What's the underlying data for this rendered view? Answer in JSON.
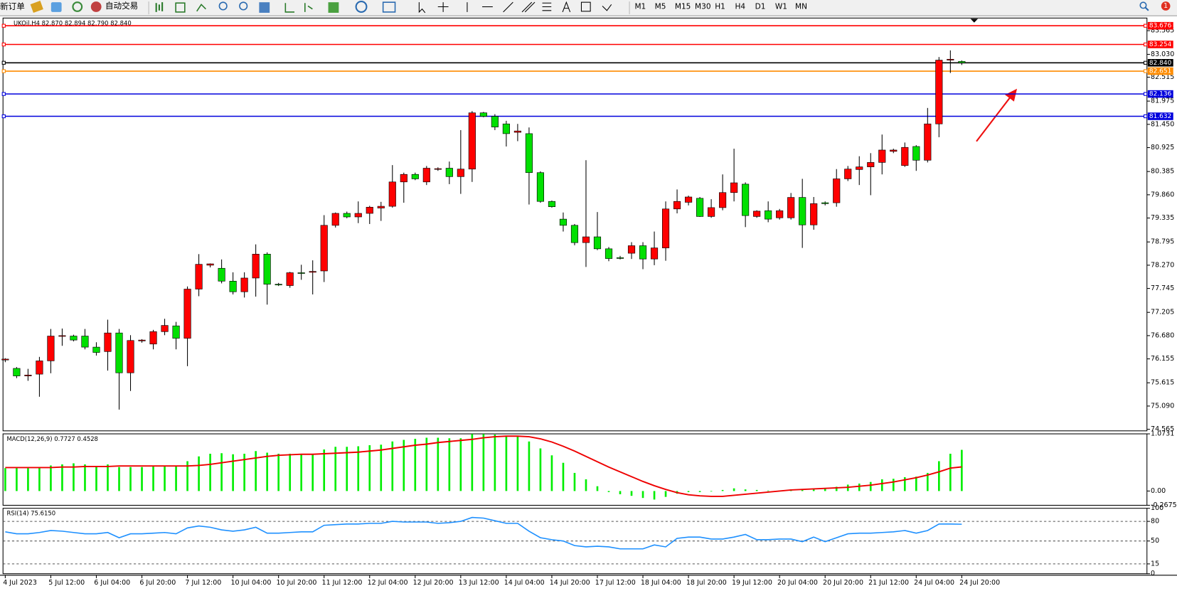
{
  "toolbar": {
    "new_order": "新订单",
    "auto_trading": "自动交易",
    "timeframes": [
      "M1",
      "M5",
      "M15",
      "M30",
      "H1",
      "H4",
      "D1",
      "W1",
      "MN"
    ],
    "notification_count": "1"
  },
  "chart_data": [
    {
      "type": "candlestick",
      "title": "UKOil,H4 82.870 82.894 82.790 82.840",
      "categories": [
        "4 Jul 2023",
        null,
        null,
        null,
        "5 Jul 12:00",
        null,
        null,
        null,
        "6 Jul 04:00",
        null,
        null,
        null,
        "6 Jul 20:00",
        null,
        null,
        null,
        "7 Jul 12:00",
        null,
        null,
        null,
        "10 Jul 04:00",
        null,
        null,
        null,
        "10 Jul 20:00",
        null,
        null,
        null,
        "11 Jul 12:00",
        null,
        null,
        null,
        "12 Jul 04:00",
        null,
        null,
        null,
        "12 Jul 20:00",
        null,
        null,
        null,
        "13 Jul 12:00",
        null,
        null,
        null,
        "14 Jul 04:00",
        null,
        null,
        null,
        "14 Jul 20:00",
        null,
        null,
        null,
        "17 Jul 12:00",
        null,
        null,
        null,
        "18 Jul 04:00",
        null,
        null,
        null,
        "18 Jul 20:00",
        null,
        null,
        null,
        "19 Jul 12:00",
        null,
        null,
        null,
        "20 Jul 04:00",
        null,
        null,
        null,
        "20 Jul 20:00",
        null,
        null,
        null,
        "21 Jul 12:00",
        null,
        null,
        null,
        "24 Jul 04:00",
        null,
        null,
        null,
        "24 Jul 20:00"
      ],
      "open": [
        76.13,
        75.94,
        75.77,
        75.81,
        76.11,
        76.67,
        76.67,
        76.67,
        76.42,
        76.32,
        76.74,
        75.84,
        76.56,
        76.49,
        76.77,
        76.9,
        76.62,
        77.73,
        78.27,
        78.2,
        77.91,
        77.67,
        77.98,
        78.52,
        77.84,
        77.81,
        78.1,
        78.11,
        78.14,
        79.17,
        79.44,
        79.36,
        79.44,
        79.56,
        79.6,
        80.15,
        80.32,
        80.15,
        80.44,
        80.46,
        80.27,
        80.44,
        81.71,
        81.63,
        81.46,
        81.27,
        81.24,
        80.36,
        79.71,
        79.31,
        79.17,
        78.78,
        78.91,
        78.64,
        78.44,
        78.54,
        78.71,
        78.41,
        78.66,
        79.54,
        79.69,
        79.78,
        79.37,
        79.57,
        79.91,
        80.1,
        79.37,
        79.5,
        79.34,
        79.34,
        79.8,
        79.18,
        79.68,
        79.68,
        80.22,
        80.43,
        80.49,
        80.59,
        80.84,
        80.52,
        80.95,
        80.64,
        81.46,
        82.9,
        82.87
      ],
      "high": [
        76.17,
        75.97,
        75.93,
        76.2,
        76.83,
        76.84,
        76.7,
        76.83,
        76.53,
        77.04,
        76.83,
        76.69,
        76.6,
        76.81,
        77.06,
        76.99,
        77.79,
        78.52,
        78.31,
        78.4,
        78.11,
        78.11,
        78.74,
        78.56,
        77.87,
        78.12,
        78.28,
        78.38,
        79.4,
        79.46,
        79.48,
        79.71,
        79.61,
        79.7,
        80.53,
        80.36,
        80.36,
        80.51,
        80.48,
        80.61,
        81.32,
        81.75,
        81.73,
        81.68,
        81.53,
        81.46,
        81.38,
        80.39,
        79.73,
        79.46,
        79.2,
        80.64,
        79.47,
        78.68,
        78.48,
        78.79,
        78.79,
        79.03,
        79.71,
        79.98,
        79.84,
        79.81,
        79.76,
        80.32,
        80.9,
        80.14,
        79.51,
        79.71,
        79.54,
        79.9,
        80.22,
        79.81,
        79.71,
        80.44,
        80.51,
        80.73,
        80.8,
        81.22,
        80.9,
        81.04,
        80.98,
        81.82,
        82.97,
        83.12,
        82.894
      ],
      "low": [
        76.08,
        75.72,
        75.66,
        75.3,
        75.83,
        76.45,
        76.55,
        76.37,
        76.23,
        75.89,
        75.01,
        75.43,
        76.52,
        76.37,
        76.69,
        76.37,
        75.99,
        77.57,
        78.22,
        77.86,
        77.61,
        77.54,
        77.56,
        77.38,
        77.8,
        77.76,
        77.94,
        77.61,
        77.89,
        79.12,
        79.33,
        79.22,
        79.2,
        79.27,
        79.57,
        79.68,
        80.19,
        80.08,
        80.4,
        80.1,
        79.88,
        80.15,
        81.61,
        81.32,
        80.95,
        81.07,
        79.64,
        79.68,
        79.57,
        79.03,
        78.72,
        78.23,
        78.61,
        78.36,
        78.4,
        78.41,
        78.18,
        78.27,
        78.37,
        79.44,
        79.62,
        79.36,
        79.34,
        79.51,
        79.71,
        79.13,
        79.34,
        79.24,
        79.3,
        79.3,
        78.66,
        79.07,
        79.62,
        79.59,
        80.17,
        80.08,
        79.85,
        80.32,
        80.8,
        80.49,
        80.4,
        80.59,
        81.16,
        82.61,
        82.79
      ],
      "close": [
        76.15,
        75.77,
        75.79,
        76.11,
        76.67,
        76.68,
        76.58,
        76.42,
        76.3,
        76.74,
        75.84,
        76.57,
        76.58,
        76.77,
        76.91,
        76.62,
        77.73,
        78.29,
        78.3,
        77.91,
        77.67,
        77.98,
        78.52,
        77.84,
        77.83,
        78.1,
        78.09,
        78.13,
        79.17,
        79.44,
        79.36,
        79.44,
        79.58,
        79.6,
        80.15,
        80.32,
        80.22,
        80.46,
        80.45,
        80.27,
        80.44,
        81.71,
        81.63,
        81.39,
        81.24,
        81.3,
        80.36,
        79.71,
        79.59,
        79.17,
        78.78,
        78.91,
        78.64,
        78.42,
        78.43,
        78.71,
        78.41,
        78.66,
        79.54,
        79.71,
        79.81,
        79.37,
        79.57,
        79.91,
        80.13,
        79.39,
        79.49,
        79.31,
        79.5,
        79.8,
        79.18,
        79.66,
        79.66,
        80.22,
        80.44,
        80.49,
        80.59,
        80.87,
        80.87,
        80.93,
        80.64,
        81.46,
        82.9,
        82.92,
        82.84
      ],
      "up_color": "#ff0000",
      "down_color": "#00e000",
      "ylim": [
        74.53,
        83.85
      ],
      "yticks": [
        83.565,
        {
          "value": 83.03,
          "label": "83.030"
        },
        82.515,
        81.975,
        {
          "value": 81.45,
          "label": "81.450"
        },
        80.925,
        80.385,
        {
          "value": 79.86,
          "label": "79.860"
        },
        79.335,
        78.795,
        {
          "value": 78.27,
          "label": "78.270"
        },
        77.745,
        77.205,
        {
          "value": 76.68,
          "label": "76.680"
        },
        76.155,
        75.615,
        {
          "value": 75.09,
          "label": "75.090"
        },
        74.565
      ],
      "levels": {
        "values": [
          83.676,
          83.254,
          82.84,
          82.651,
          82.136,
          81.632
        ],
        "value_labels": [
          "83.676",
          "83.254",
          "82.840",
          "82.651",
          "82.136",
          "81.632"
        ],
        "colors": [
          "#ff0000",
          "#ff0000",
          "#000000",
          "#ff8c00",
          "#0000dd",
          "#0000dd"
        ]
      }
    },
    {
      "type": "macd",
      "title": "MACD(12,26,9) 0.7727 0.4528",
      "series": [
        {
          "type": "bar",
          "color": "#00ee00",
          "values": [
            0.43,
            0.43,
            0.43,
            0.45,
            0.48,
            0.5,
            0.52,
            0.5,
            0.47,
            0.5,
            0.45,
            0.45,
            0.45,
            0.46,
            0.48,
            0.47,
            0.56,
            0.65,
            0.7,
            0.71,
            0.69,
            0.7,
            0.75,
            0.72,
            0.7,
            0.7,
            0.68,
            0.69,
            0.78,
            0.83,
            0.83,
            0.84,
            0.86,
            0.87,
            0.93,
            0.96,
            0.98,
            1.0,
            1.0,
            0.99,
            0.99,
            1.07,
            1.07,
            1.06,
            1.04,
            1.02,
            0.93,
            0.8,
            0.67,
            0.53,
            0.34,
            0.22,
            0.09,
            -0.02,
            -0.06,
            -0.09,
            -0.13,
            -0.16,
            -0.11,
            -0.05,
            -0.02,
            -0.02,
            -0.01,
            0.02,
            0.05,
            0.03,
            0.02,
            0.01,
            0.01,
            0.03,
            0.02,
            0.03,
            0.04,
            0.08,
            0.12,
            0.14,
            0.17,
            0.22,
            0.23,
            0.26,
            0.27,
            0.34,
            0.56,
            0.7,
            0.7727
          ]
        },
        {
          "type": "line",
          "color": "#ee0000",
          "values": [
            0.44,
            0.44,
            0.44,
            0.44,
            0.44,
            0.45,
            0.45,
            0.46,
            0.46,
            0.46,
            0.47,
            0.47,
            0.47,
            0.47,
            0.47,
            0.47,
            0.47,
            0.48,
            0.5,
            0.53,
            0.56,
            0.59,
            0.62,
            0.65,
            0.67,
            0.68,
            0.69,
            0.69,
            0.7,
            0.71,
            0.72,
            0.73,
            0.75,
            0.77,
            0.8,
            0.83,
            0.86,
            0.88,
            0.91,
            0.93,
            0.95,
            0.97,
            1.0,
            1.02,
            1.03,
            1.03,
            1.02,
            0.98,
            0.92,
            0.84,
            0.75,
            0.65,
            0.55,
            0.45,
            0.36,
            0.27,
            0.18,
            0.1,
            0.03,
            -0.03,
            -0.07,
            -0.09,
            -0.1,
            -0.1,
            -0.08,
            -0.06,
            -0.04,
            -0.02,
            0.0,
            0.02,
            0.03,
            0.04,
            0.05,
            0.06,
            0.07,
            0.09,
            0.11,
            0.14,
            0.17,
            0.21,
            0.25,
            0.3,
            0.36,
            0.43,
            0.4528
          ]
        }
      ],
      "ylim": [
        -0.2675,
        1.0731
      ],
      "yticks": [
        1.0731,
        {
          "value": 0,
          "label": "0.00"
        },
        -0.2675
      ]
    },
    {
      "type": "line",
      "title": "RSI(14) 75.6150",
      "color": "#1e90ff",
      "values": [
        64,
        61,
        61,
        63,
        66,
        65,
        63,
        61,
        61,
        63,
        55,
        61,
        61,
        62,
        63,
        61,
        70,
        73,
        71,
        67,
        65,
        67,
        71,
        62,
        62,
        63,
        64,
        64,
        74,
        75,
        76,
        76,
        77,
        77,
        80,
        79,
        79,
        79,
        77,
        78,
        80,
        86,
        85,
        81,
        77,
        77,
        65,
        55,
        52,
        50,
        43,
        41,
        42,
        41,
        38,
        38,
        38,
        44,
        41,
        54,
        56,
        56,
        53,
        53,
        56,
        60,
        52,
        52,
        53,
        53,
        49,
        56,
        49,
        55,
        61,
        62,
        62,
        63,
        64,
        66,
        62,
        66,
        76,
        76,
        75.615
      ],
      "ylim": [
        0,
        100
      ],
      "yticks": [
        100,
        80,
        50,
        15,
        0
      ],
      "dashed_levels": true
    }
  ]
}
